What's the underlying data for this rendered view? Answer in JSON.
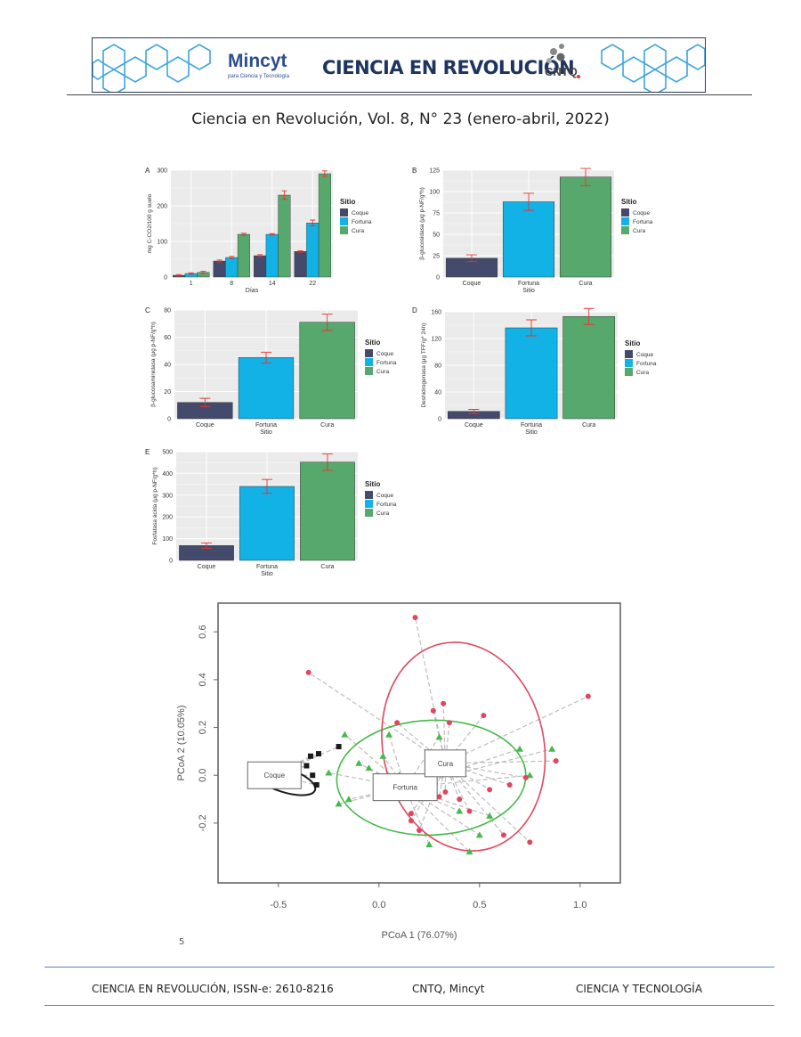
{
  "header": {
    "brand_left": "Mincyt",
    "brand_left_sub": "para Ciencia y Tecnología",
    "brand_center": "CIENCIA EN REVOLUCIÓN",
    "brand_right": "CNTQ"
  },
  "journal_line": "Ciencia en Revolución, Vol. 8, N° 23 (enero-abril, 2022)",
  "legend": {
    "title": "Sitio",
    "entries": [
      "Coque",
      "Fortuna",
      "Cura"
    ]
  },
  "colors": {
    "Coque": "#434a6b",
    "Fortuna": "#12b2e6",
    "Cura": "#56a86c",
    "error": "#e8342c",
    "panel_bg": "#ebebeb"
  },
  "chart_data": [
    {
      "panel": "A",
      "type": "bar",
      "categories": [
        "1",
        "8",
        "14",
        "22"
      ],
      "xlabel": "Días",
      "ylabel": "mg C-CO2/100 g suelo",
      "ylim": [
        0,
        300
      ],
      "yticks": [
        0,
        100,
        200,
        300
      ],
      "grid": true,
      "legend_position": "right",
      "series": [
        {
          "name": "Coque",
          "values": [
            5,
            45,
            60,
            72
          ],
          "errors": [
            2,
            3,
            3,
            2
          ]
        },
        {
          "name": "Fortuna",
          "values": [
            10,
            55,
            120,
            152
          ],
          "errors": [
            2,
            3,
            2,
            8
          ]
        },
        {
          "name": "Cura",
          "values": [
            13,
            120,
            230,
            290
          ],
          "errors": [
            3,
            3,
            12,
            8
          ]
        }
      ]
    },
    {
      "panel": "B",
      "type": "bar",
      "categories": [
        "Coque",
        "Fortuna",
        "Cura"
      ],
      "xlabel": "Sitio",
      "ylabel": "β-glucosidasa (μg p-NF/g*h)",
      "ylim": [
        0,
        125
      ],
      "yticks": [
        0,
        25,
        50,
        75,
        100,
        125
      ],
      "grid": true,
      "legend_position": "right",
      "values": [
        22,
        88,
        117
      ],
      "errors": [
        4,
        10,
        10
      ]
    },
    {
      "panel": "C",
      "type": "bar",
      "categories": [
        "Coque",
        "Fortuna",
        "Cura"
      ],
      "xlabel": "Sitio",
      "ylabel": "β-glucosaminidasa (μg p-NF/g*h)",
      "ylim": [
        0,
        80
      ],
      "yticks": [
        0,
        20,
        40,
        60,
        80
      ],
      "grid": true,
      "legend_position": "right",
      "values": [
        12,
        45,
        71
      ],
      "errors": [
        3,
        4,
        6
      ]
    },
    {
      "panel": "D",
      "type": "bar",
      "categories": [
        "Coque",
        "Fortuna",
        "Cura"
      ],
      "xlabel": "Sitio",
      "ylabel": "Deshidrogenasa (μg TFF/g* 24h)",
      "ylim": [
        0,
        160
      ],
      "yticks": [
        0,
        40,
        80,
        120,
        160
      ],
      "grid": true,
      "legend_position": "right",
      "values": [
        11,
        136,
        153
      ],
      "errors": [
        3,
        12,
        12
      ]
    },
    {
      "panel": "E",
      "type": "bar",
      "categories": [
        "Coque",
        "Fortuna",
        "Cura"
      ],
      "xlabel": "Sitio",
      "ylabel": "Fosfatasa ácida (μg p-NF/g*h)",
      "ylim": [
        0,
        500
      ],
      "yticks": [
        0,
        100,
        200,
        300,
        400,
        500
      ],
      "grid": true,
      "legend_position": "right",
      "values": [
        68,
        340,
        452
      ],
      "errors": [
        12,
        32,
        38
      ]
    },
    {
      "panel": "PCoA",
      "type": "scatter",
      "xlabel": "PCoA 1 (76.07%)",
      "ylabel": "PCoA 2 (10.05%)",
      "xlim": [
        -0.8,
        1.2
      ],
      "ylim": [
        -0.45,
        0.72
      ],
      "xticks": [
        -0.5,
        0.0,
        0.5,
        1.0
      ],
      "yticks": [
        -0.2,
        0.0,
        0.2,
        0.4,
        0.6
      ],
      "grid": false,
      "series": [
        {
          "name": "Coque",
          "centroid": [
            -0.52,
            0.0
          ],
          "ellipse": {
            "cx": -0.47,
            "cy": -0.02,
            "rx": 0.16,
            "ry": 0.05,
            "rot": 18
          },
          "x": [
            -0.36,
            -0.33,
            -0.31,
            -0.3,
            -0.34,
            -0.2
          ],
          "y": [
            0.04,
            0.0,
            -0.04,
            0.09,
            0.08,
            0.12
          ]
        },
        {
          "name": "Fortuna",
          "centroid": [
            0.13,
            -0.05
          ],
          "ellipse": {
            "cx": 0.26,
            "cy": -0.01,
            "rx": 0.47,
            "ry": 0.24,
            "rot": -2
          },
          "x": [
            -0.05,
            0.02,
            0.1,
            -0.15,
            -0.25,
            -0.1,
            0.05,
            0.3,
            0.4,
            0.25,
            0.55,
            0.7,
            0.75,
            0.86,
            0.5,
            0.45,
            -0.17,
            -0.2
          ],
          "y": [
            0.03,
            0.08,
            0.0,
            -0.1,
            0.01,
            0.05,
            0.17,
            0.16,
            -0.15,
            -0.29,
            -0.17,
            0.11,
            0.0,
            0.11,
            -0.25,
            -0.32,
            0.17,
            -0.12
          ]
        },
        {
          "name": "Cura",
          "centroid": [
            0.33,
            0.05
          ],
          "ellipse": {
            "cx": 0.42,
            "cy": 0.12,
            "rx": 0.4,
            "ry": 0.44,
            "rot": -12
          },
          "x": [
            0.18,
            0.32,
            0.27,
            0.35,
            -0.35,
            0.09,
            0.52,
            1.04,
            0.88,
            0.73,
            0.62,
            0.16,
            0.16,
            0.33,
            0.3,
            0.45,
            0.2,
            0.55,
            0.65,
            0.75,
            0.35,
            0.4
          ],
          "y": [
            0.66,
            0.3,
            0.27,
            0.22,
            0.43,
            0.22,
            0.25,
            0.33,
            0.06,
            -0.01,
            -0.25,
            -0.16,
            -0.19,
            -0.07,
            -0.09,
            -0.15,
            -0.23,
            -0.06,
            -0.04,
            -0.28,
            0.03,
            -0.1
          ]
        }
      ]
    }
  ],
  "page_number": "5",
  "footer": {
    "left": "CIENCIA EN REVOLUCIÓN, ISSN-e: 2610-8216",
    "center": "CNTQ, Mincyt",
    "right": "CIENCIA Y TECNOLOGÍA"
  }
}
